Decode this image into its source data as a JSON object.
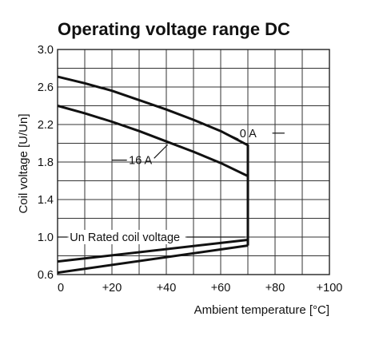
{
  "chart_data": {
    "type": "line",
    "title": "Operating voltage range DC",
    "xlabel": "Ambient temperature [°C]",
    "ylabel": "Coil voltage [U/Un]",
    "xlim": [
      0,
      100
    ],
    "ylim": [
      0.6,
      3.0
    ],
    "x_ticks": [
      "0",
      "+20",
      "+40",
      "+60",
      "+80",
      "+100"
    ],
    "y_ticks": [
      "0.6",
      "1.0",
      "1.4",
      "1.8",
      "2.2",
      "2.6",
      "3.0"
    ],
    "x_tick_values": [
      0,
      20,
      40,
      60,
      80,
      100
    ],
    "y_tick_values": [
      0.6,
      1.0,
      1.4,
      1.8,
      2.2,
      2.6,
      3.0
    ],
    "grid": true,
    "x_grid_step": 10,
    "y_grid_step": 0.2,
    "series": [
      {
        "name": "0 A",
        "label": "0 A",
        "role": "upper",
        "x": [
          0,
          10,
          20,
          30,
          40,
          50,
          60,
          70,
          70
        ],
        "y": [
          2.71,
          2.64,
          2.56,
          2.46,
          2.36,
          2.25,
          2.13,
          1.98,
          0.97
        ]
      },
      {
        "name": "16 A",
        "label": "16 A",
        "role": "upper",
        "x": [
          0,
          10,
          20,
          30,
          40,
          50,
          60,
          70,
          70
        ],
        "y": [
          2.4,
          2.32,
          2.23,
          2.13,
          2.02,
          1.91,
          1.79,
          1.65,
          0.91
        ]
      },
      {
        "name": "",
        "role": "lower",
        "x": [
          0,
          70
        ],
        "y": [
          0.74,
          0.97
        ]
      },
      {
        "name": "",
        "role": "lower",
        "x": [
          0,
          70
        ],
        "y": [
          0.62,
          0.91
        ]
      }
    ],
    "annotations": [
      {
        "text": "0 A",
        "x": 70,
        "y": 1.98
      },
      {
        "text": "16 A",
        "x": 36,
        "y": 2.03
      },
      {
        "text": "Un Rated coil voltage",
        "x": 0,
        "y": 1.0
      }
    ]
  }
}
